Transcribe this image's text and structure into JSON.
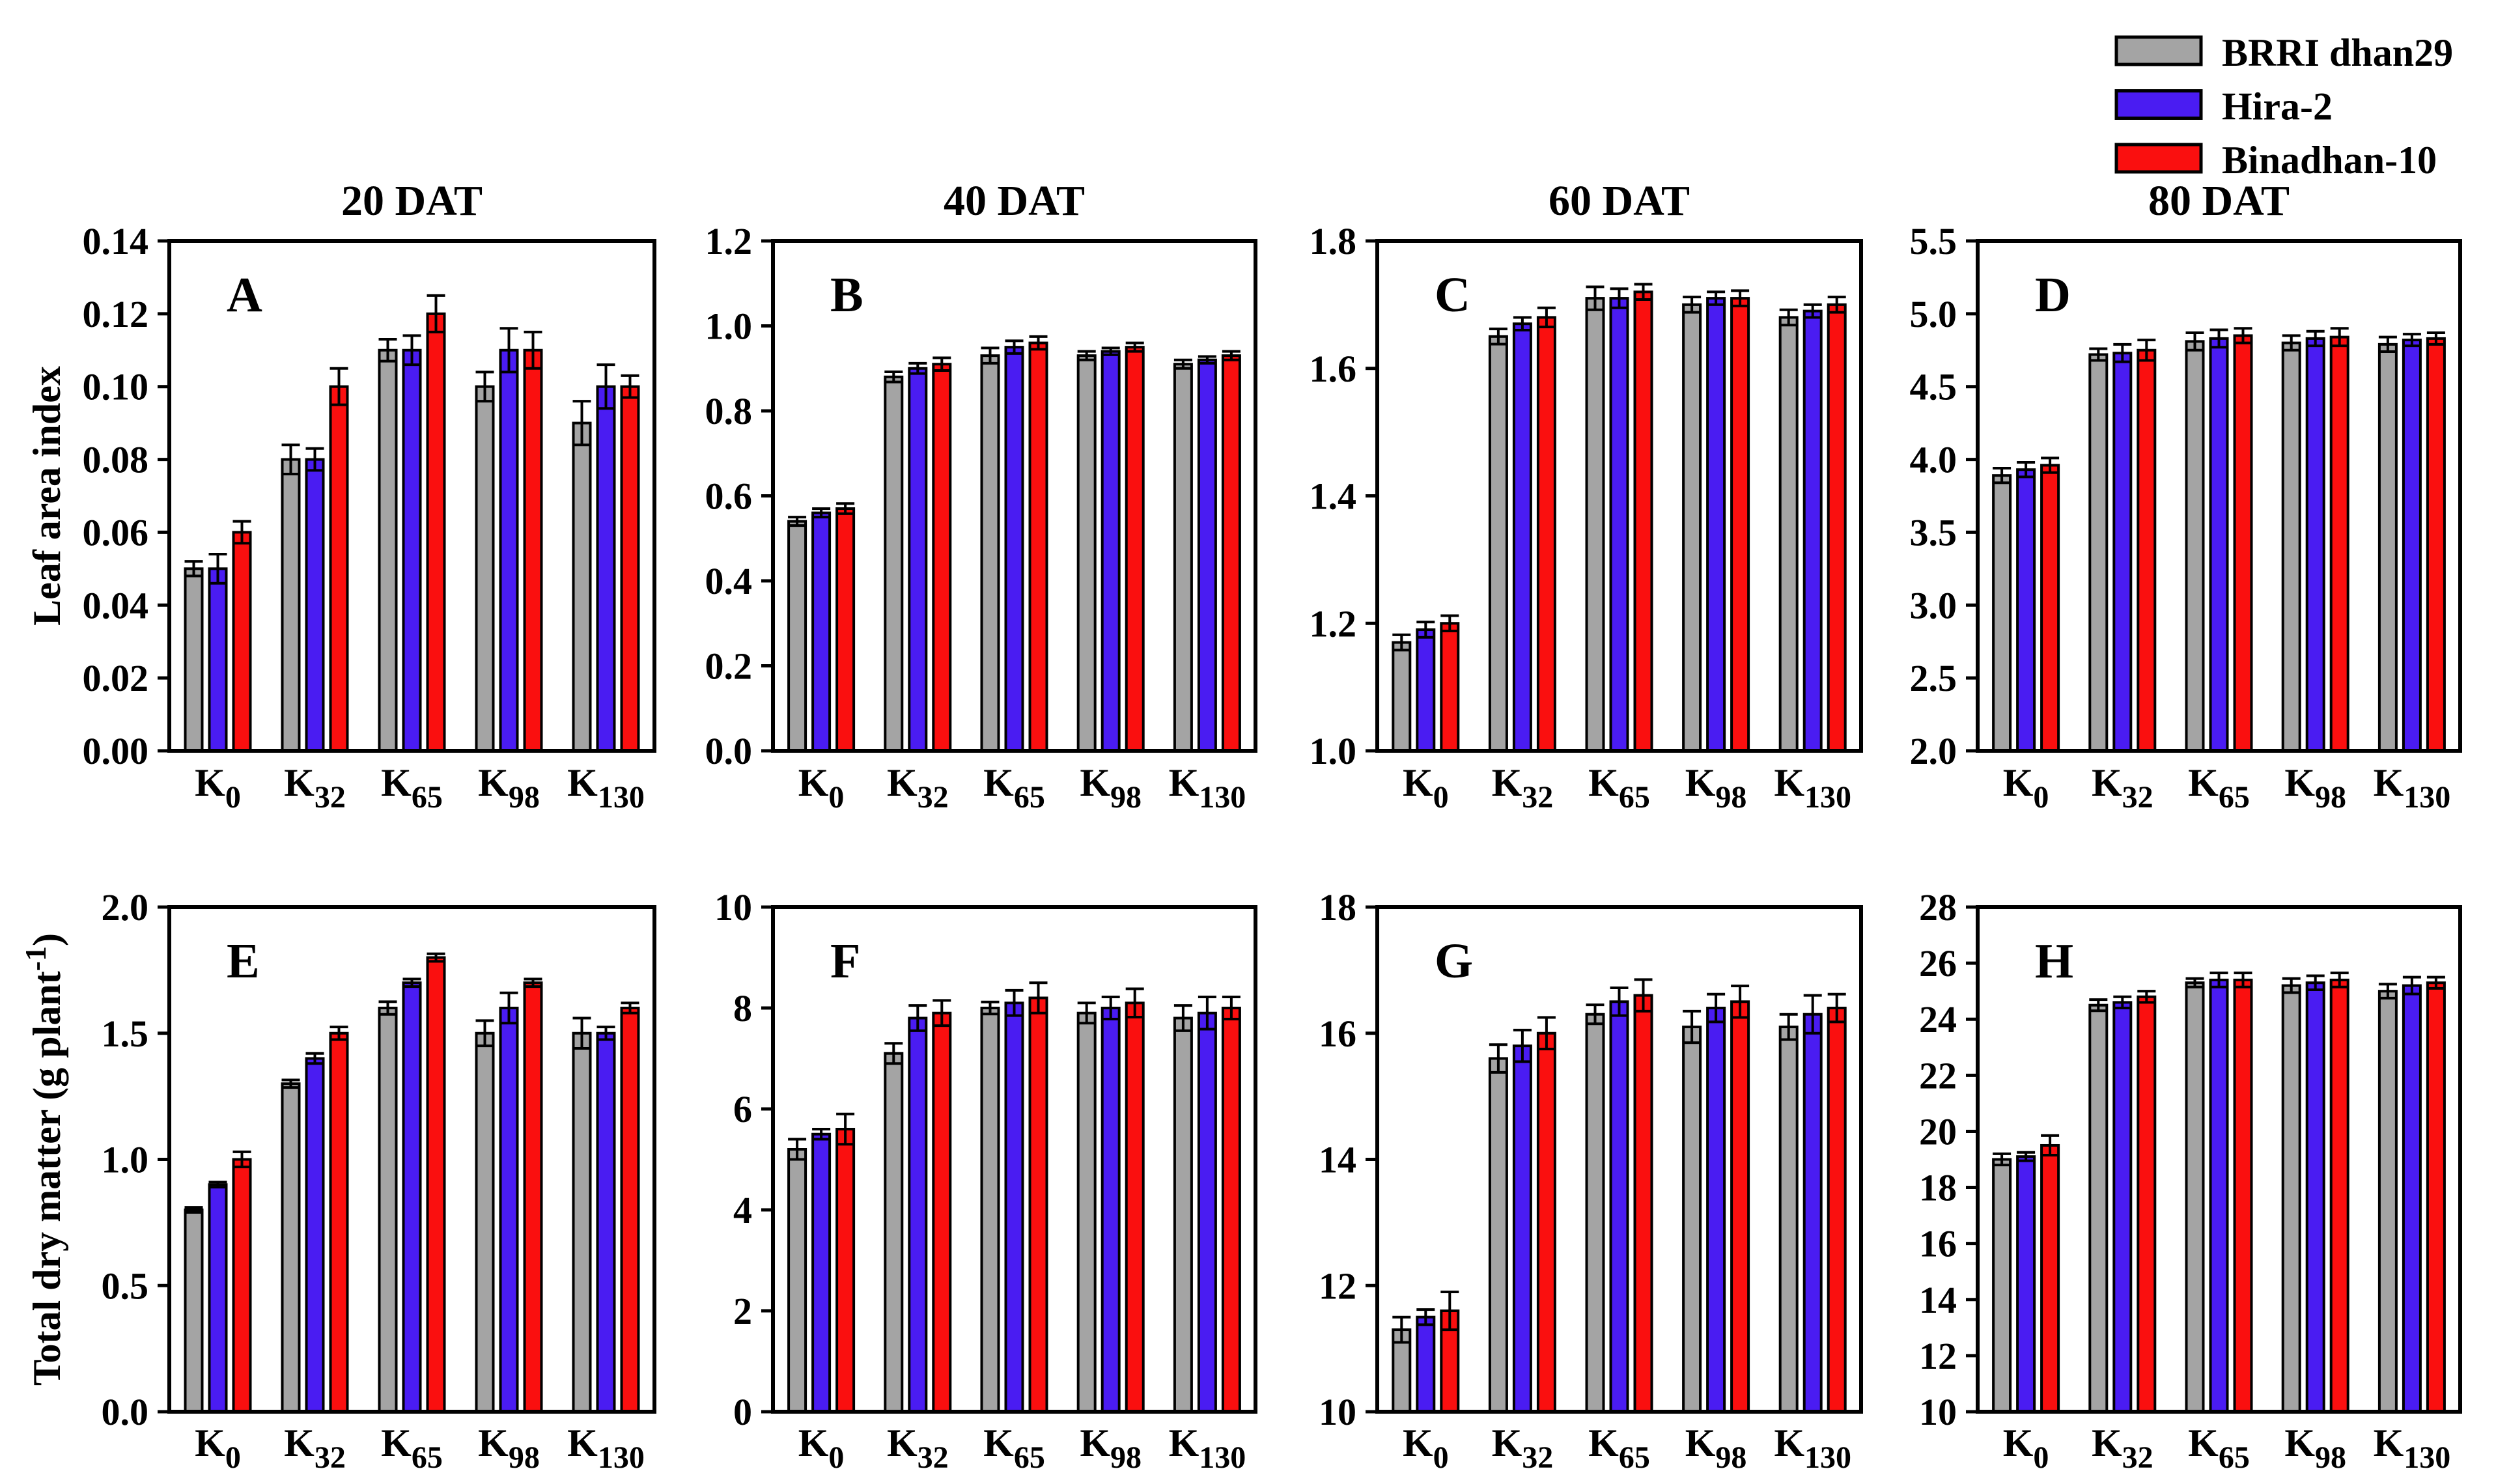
{
  "figure": {
    "background": "#ffffff",
    "legend": {
      "entries": [
        {
          "label": "BRRI dhan29",
          "color": "#a4a4a4"
        },
        {
          "label": "Hira-2",
          "color": "#4a1cf2"
        },
        {
          "label": "Binadhan-10",
          "color": "#fa0f0f"
        }
      ]
    },
    "column_titles": [
      "20 DAT",
      "40 DAT",
      "60 DAT",
      "80 DAT"
    ],
    "row_labels": [
      {
        "prefix": "Leaf area index",
        "sup": "",
        "suffix": ""
      },
      {
        "prefix": "Total dry matter (g plant",
        "sup": "-1",
        "suffix": ")"
      }
    ]
  },
  "categories": [
    {
      "base": "K",
      "sub": "0"
    },
    {
      "base": "K",
      "sub": "32"
    },
    {
      "base": "K",
      "sub": "65"
    },
    {
      "base": "K",
      "sub": "98"
    },
    {
      "base": "K",
      "sub": "130"
    }
  ],
  "chart_data": [
    {
      "panel": "A",
      "row": 0,
      "col": 0,
      "type": "bar",
      "title": "20 DAT",
      "ylabel": "Leaf area index",
      "ylim": [
        0.0,
        0.14
      ],
      "ytick_step": 0.02,
      "ytick_decimals": 2,
      "yticks": [
        "0.00",
        "0.02",
        "0.04",
        "0.06",
        "0.08",
        "0.10",
        "0.12",
        "0.14"
      ],
      "categories": [
        "K0",
        "K32",
        "K65",
        "K98",
        "K130"
      ],
      "series": [
        {
          "name": "BRRI dhan29",
          "values": [
            0.05,
            0.08,
            0.11,
            0.1,
            0.09
          ],
          "errors": [
            0.002,
            0.004,
            0.003,
            0.004,
            0.006
          ]
        },
        {
          "name": "Hira-2",
          "values": [
            0.05,
            0.08,
            0.11,
            0.11,
            0.1
          ],
          "errors": [
            0.004,
            0.003,
            0.004,
            0.006,
            0.006
          ]
        },
        {
          "name": "Binadhan-10",
          "values": [
            0.06,
            0.1,
            0.12,
            0.11,
            0.1
          ],
          "errors": [
            0.003,
            0.005,
            0.005,
            0.005,
            0.003
          ]
        }
      ]
    },
    {
      "panel": "B",
      "row": 0,
      "col": 1,
      "type": "bar",
      "title": "40 DAT",
      "ylabel": "Leaf area index",
      "ylim": [
        0.0,
        1.2
      ],
      "ytick_step": 0.2,
      "ytick_decimals": 1,
      "yticks": [
        "0.0",
        "0.2",
        "0.4",
        "0.6",
        "0.8",
        "1.0",
        "1.2"
      ],
      "categories": [
        "K0",
        "K32",
        "K65",
        "K98",
        "K130"
      ],
      "series": [
        {
          "name": "BRRI dhan29",
          "values": [
            0.54,
            0.88,
            0.93,
            0.93,
            0.91
          ],
          "errors": [
            0.01,
            0.012,
            0.018,
            0.01,
            0.01
          ]
        },
        {
          "name": "Hira-2",
          "values": [
            0.56,
            0.9,
            0.95,
            0.94,
            0.92
          ],
          "errors": [
            0.01,
            0.012,
            0.015,
            0.008,
            0.008
          ]
        },
        {
          "name": "Binadhan-10",
          "values": [
            0.57,
            0.91,
            0.96,
            0.95,
            0.93
          ],
          "errors": [
            0.012,
            0.015,
            0.015,
            0.01,
            0.01
          ]
        }
      ]
    },
    {
      "panel": "C",
      "row": 0,
      "col": 2,
      "type": "bar",
      "title": "60 DAT",
      "ylabel": "Leaf area index",
      "ylim": [
        1.0,
        1.8
      ],
      "ytick_step": 0.2,
      "ytick_decimals": 1,
      "yticks": [
        "1.0",
        "1.2",
        "1.4",
        "1.6",
        "1.8"
      ],
      "categories": [
        "K0",
        "K32",
        "K65",
        "K98",
        "K130"
      ],
      "series": [
        {
          "name": "BRRI dhan29",
          "values": [
            1.17,
            1.65,
            1.71,
            1.7,
            1.68
          ],
          "errors": [
            0.012,
            0.012,
            0.018,
            0.012,
            0.012
          ]
        },
        {
          "name": "Hira-2",
          "values": [
            1.19,
            1.67,
            1.71,
            1.71,
            1.69
          ],
          "errors": [
            0.012,
            0.01,
            0.015,
            0.01,
            0.01
          ]
        },
        {
          "name": "Binadhan-10",
          "values": [
            1.2,
            1.68,
            1.72,
            1.71,
            1.7
          ],
          "errors": [
            0.012,
            0.015,
            0.012,
            0.012,
            0.012
          ]
        }
      ]
    },
    {
      "panel": "D",
      "row": 0,
      "col": 3,
      "type": "bar",
      "title": "80 DAT",
      "ylabel": "Leaf area index",
      "ylim": [
        2.0,
        5.5
      ],
      "ytick_step": 0.5,
      "ytick_decimals": 1,
      "yticks": [
        "2.0",
        "2.5",
        "3.0",
        "3.5",
        "4.0",
        "4.5",
        "5.0",
        "5.5"
      ],
      "categories": [
        "K0",
        "K32",
        "K65",
        "K98",
        "K130"
      ],
      "series": [
        {
          "name": "BRRI dhan29",
          "values": [
            3.89,
            4.72,
            4.81,
            4.8,
            4.79
          ],
          "errors": [
            0.05,
            0.04,
            0.06,
            0.05,
            0.05
          ]
        },
        {
          "name": "Hira-2",
          "values": [
            3.93,
            4.73,
            4.83,
            4.83,
            4.82
          ],
          "errors": [
            0.05,
            0.06,
            0.06,
            0.05,
            0.04
          ]
        },
        {
          "name": "Binadhan-10",
          "values": [
            3.96,
            4.75,
            4.85,
            4.84,
            4.83
          ],
          "errors": [
            0.05,
            0.07,
            0.05,
            0.06,
            0.04
          ]
        }
      ]
    },
    {
      "panel": "E",
      "row": 1,
      "col": 0,
      "type": "bar",
      "title": "20 DAT",
      "ylabel": "Total dry matter (g plant-1)",
      "ylim": [
        0.0,
        2.0
      ],
      "ytick_step": 0.5,
      "ytick_decimals": 1,
      "yticks": [
        "0.0",
        "0.5",
        "1.0",
        "1.5",
        "2.0"
      ],
      "categories": [
        "K0",
        "K32",
        "K65",
        "K98",
        "K130"
      ],
      "series": [
        {
          "name": "BRRI dhan29",
          "values": [
            0.8,
            1.3,
            1.6,
            1.5,
            1.5
          ],
          "errors": [
            0.01,
            0.015,
            0.025,
            0.05,
            0.06
          ]
        },
        {
          "name": "Hira-2",
          "values": [
            0.9,
            1.4,
            1.7,
            1.6,
            1.5
          ],
          "errors": [
            0.01,
            0.02,
            0.015,
            0.06,
            0.025
          ]
        },
        {
          "name": "Binadhan-10",
          "values": [
            1.0,
            1.5,
            1.8,
            1.7,
            1.6
          ],
          "errors": [
            0.03,
            0.025,
            0.015,
            0.015,
            0.02
          ]
        }
      ]
    },
    {
      "panel": "F",
      "row": 1,
      "col": 1,
      "type": "bar",
      "title": "40 DAT",
      "ylabel": "Total dry matter (g plant-1)",
      "ylim": [
        0,
        10
      ],
      "ytick_step": 2,
      "ytick_decimals": 0,
      "yticks": [
        "0",
        "2",
        "4",
        "6",
        "8",
        "10"
      ],
      "categories": [
        "K0",
        "K32",
        "K65",
        "K98",
        "K130"
      ],
      "series": [
        {
          "name": "BRRI dhan29",
          "values": [
            5.2,
            7.1,
            8.0,
            7.9,
            7.8
          ],
          "errors": [
            0.2,
            0.2,
            0.12,
            0.2,
            0.25
          ]
        },
        {
          "name": "Hira-2",
          "values": [
            5.5,
            7.8,
            8.1,
            8.0,
            7.9
          ],
          "errors": [
            0.1,
            0.25,
            0.25,
            0.22,
            0.32
          ]
        },
        {
          "name": "Binadhan-10",
          "values": [
            5.6,
            7.9,
            8.2,
            8.1,
            8.0
          ],
          "errors": [
            0.3,
            0.25,
            0.3,
            0.28,
            0.22
          ]
        }
      ]
    },
    {
      "panel": "G",
      "row": 1,
      "col": 2,
      "type": "bar",
      "title": "60 DAT",
      "ylabel": "Total dry matter (g plant-1)",
      "ylim": [
        10,
        18
      ],
      "ytick_step": 2,
      "ytick_decimals": 0,
      "yticks": [
        "10",
        "12",
        "14",
        "16",
        "18"
      ],
      "categories": [
        "K0",
        "K32",
        "K65",
        "K98",
        "K130"
      ],
      "series": [
        {
          "name": "BRRI dhan29",
          "values": [
            11.3,
            15.6,
            16.3,
            16.1,
            16.1
          ],
          "errors": [
            0.2,
            0.22,
            0.15,
            0.25,
            0.2
          ]
        },
        {
          "name": "Hira-2",
          "values": [
            11.5,
            15.8,
            16.5,
            16.4,
            16.3
          ],
          "errors": [
            0.12,
            0.25,
            0.22,
            0.22,
            0.3
          ]
        },
        {
          "name": "Binadhan-10",
          "values": [
            11.6,
            16.0,
            16.6,
            16.5,
            16.4
          ],
          "errors": [
            0.3,
            0.25,
            0.25,
            0.25,
            0.22
          ]
        }
      ]
    },
    {
      "panel": "H",
      "row": 1,
      "col": 3,
      "type": "bar",
      "title": "80 DAT",
      "ylabel": "Total dry matter (g plant-1)",
      "ylim": [
        10,
        28
      ],
      "ytick_step": 2,
      "ytick_decimals": 0,
      "yticks": [
        "10",
        "12",
        "14",
        "16",
        "18",
        "20",
        "22",
        "24",
        "26",
        "28"
      ],
      "categories": [
        "K0",
        "K32",
        "K65",
        "K98",
        "K130"
      ],
      "series": [
        {
          "name": "BRRI dhan29",
          "values": [
            19.0,
            24.5,
            25.3,
            25.2,
            25.0
          ],
          "errors": [
            0.2,
            0.2,
            0.15,
            0.25,
            0.25
          ]
        },
        {
          "name": "Hira-2",
          "values": [
            19.1,
            24.6,
            25.4,
            25.3,
            25.2
          ],
          "errors": [
            0.15,
            0.2,
            0.25,
            0.25,
            0.3
          ]
        },
        {
          "name": "Binadhan-10",
          "values": [
            19.5,
            24.8,
            25.4,
            25.4,
            25.3
          ],
          "errors": [
            0.35,
            0.2,
            0.25,
            0.25,
            0.2
          ]
        }
      ]
    }
  ]
}
